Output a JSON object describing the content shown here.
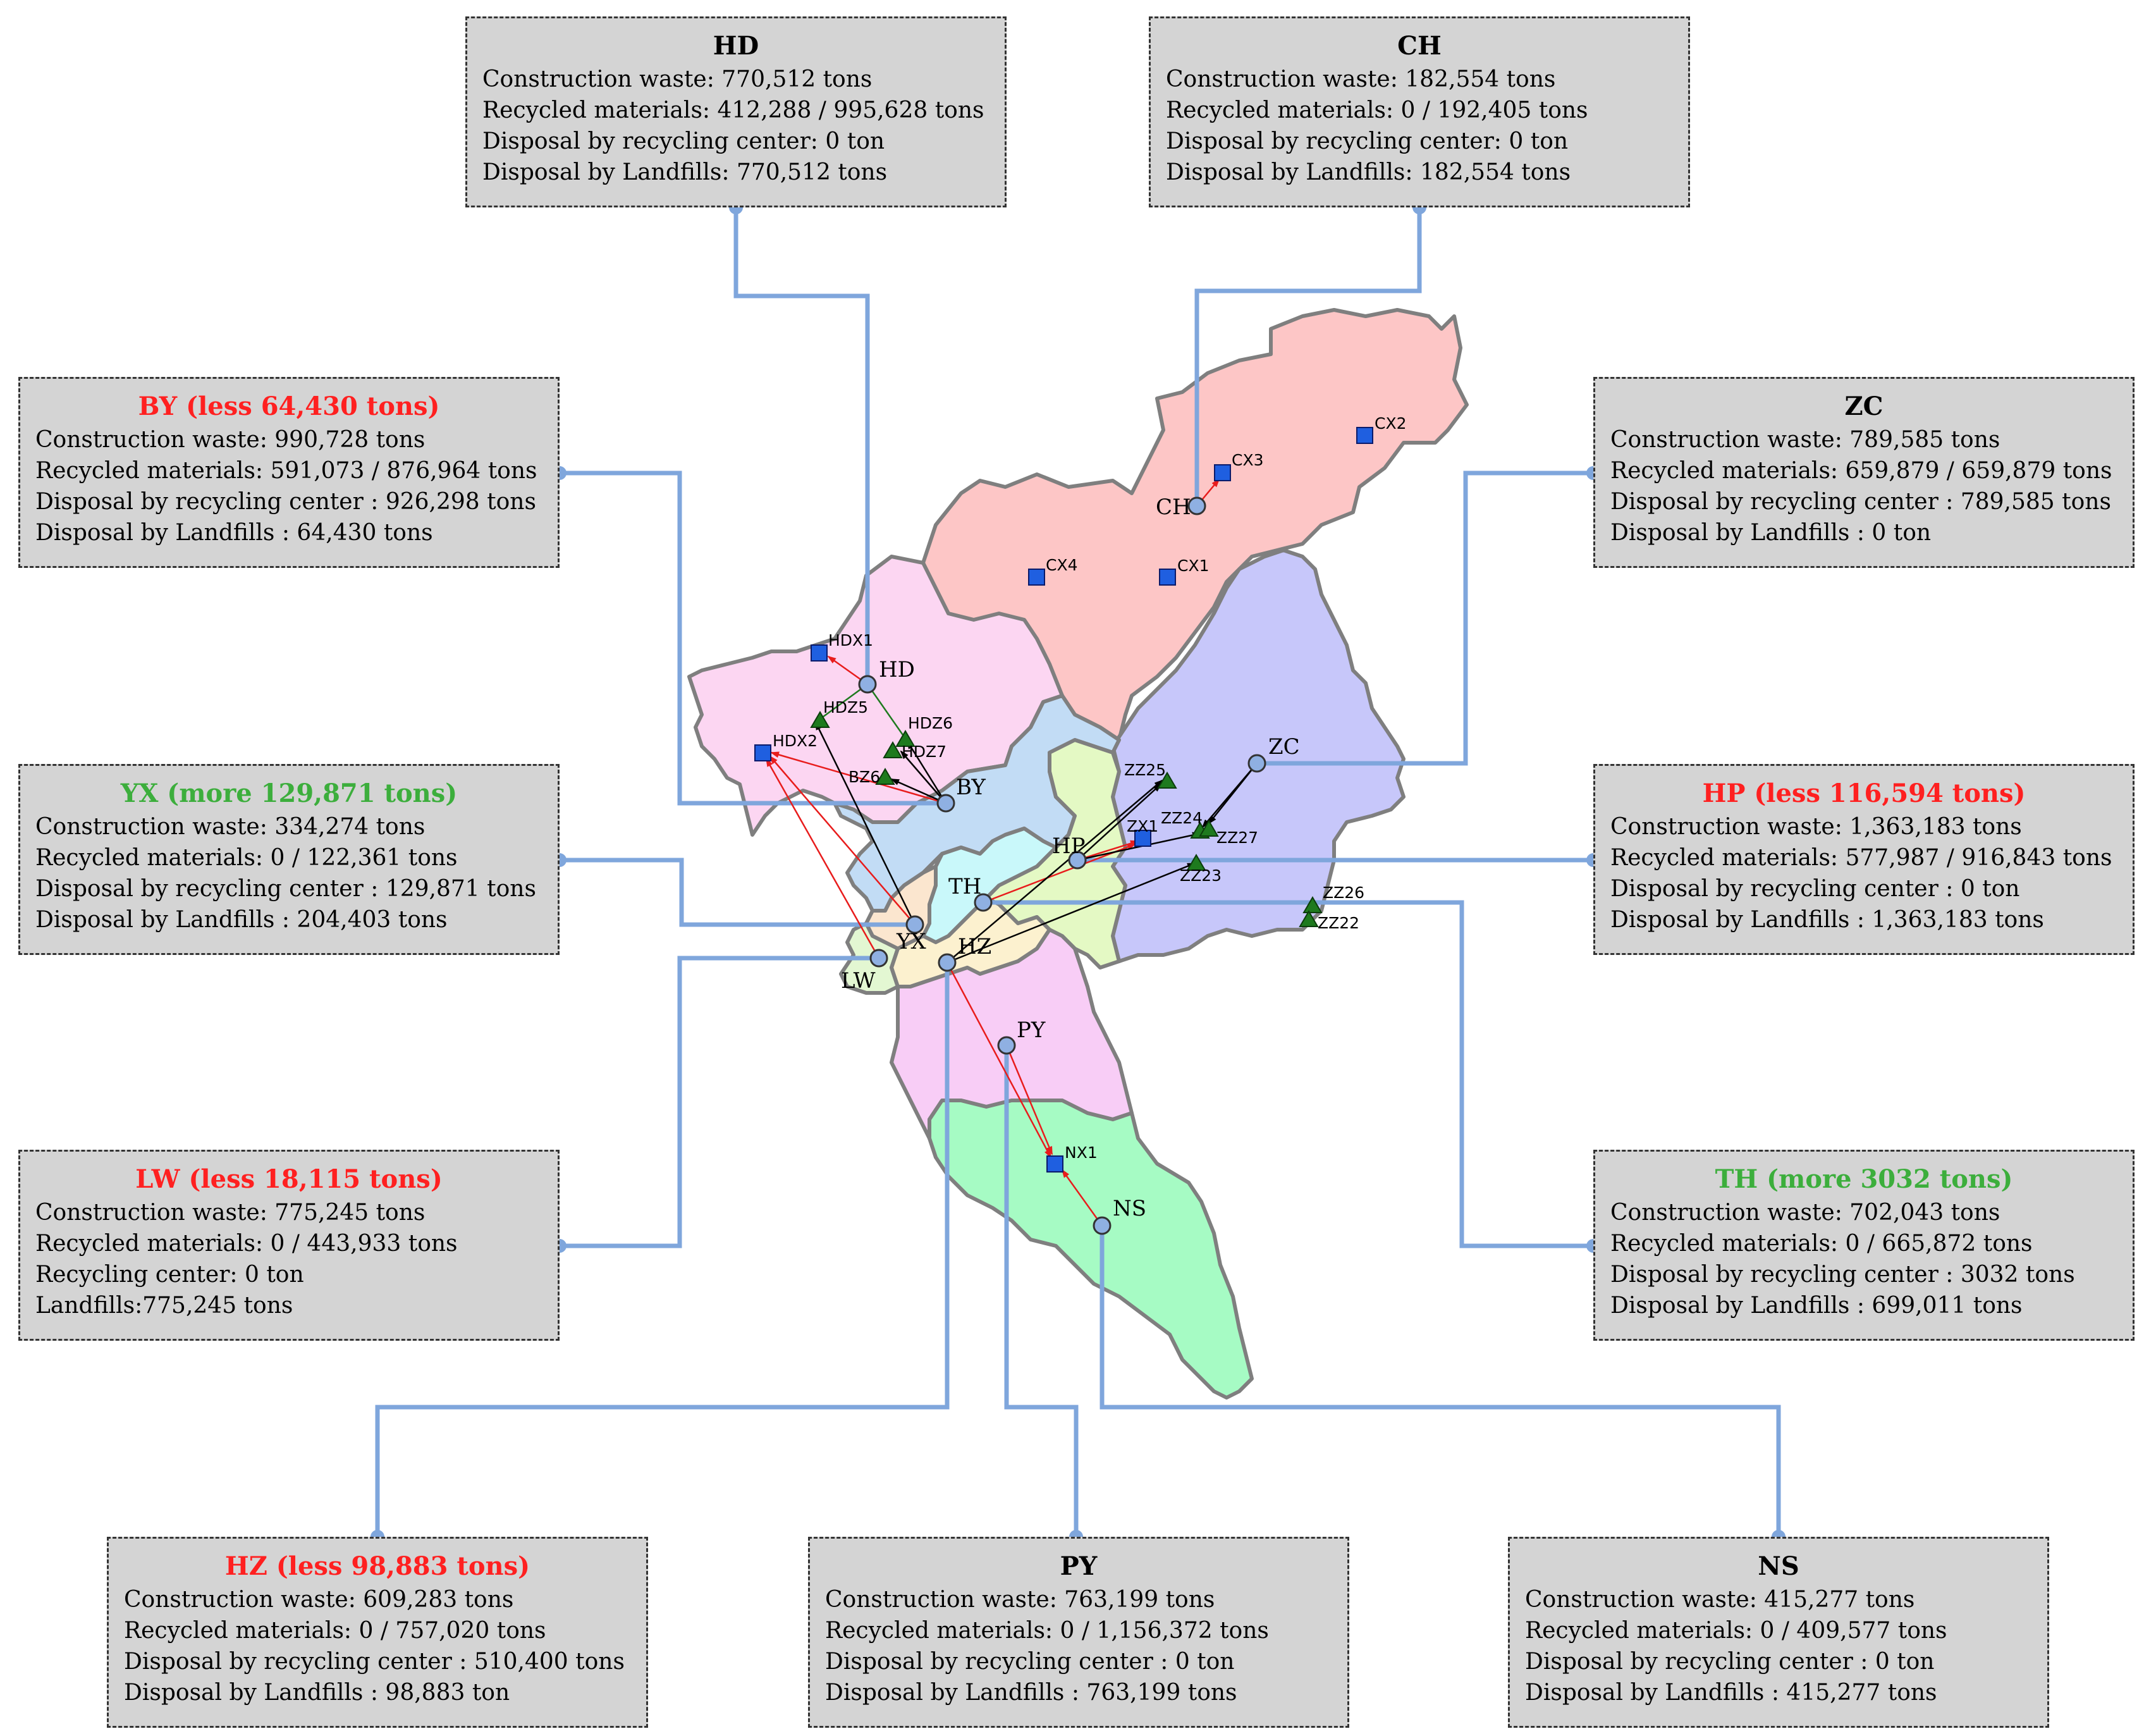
{
  "colors": {
    "box_bg": "#d4d4d4",
    "connector": "#7fa6dc",
    "red_title": "#ff2020",
    "green_title": "#3cae3c",
    "recycling_site": "#1f5fe0",
    "landfill_site": "#1e7a1e",
    "flow_red": "#e81c1c",
    "flow_black": "#000000"
  },
  "boxes": [
    {
      "id": "HD",
      "title": "HD",
      "title_color": "black",
      "lines": [
        "Construction waste: 770,512 tons",
        "Recycled materials: 412,288 / 995,628 tons",
        "Disposal by recycling center: 0 ton",
        "Disposal by Landfills: 770,512 tons"
      ]
    },
    {
      "id": "CH",
      "title": "CH",
      "title_color": "black",
      "lines": [
        "Construction waste: 182,554 tons",
        "Recycled materials: 0 / 192,405 tons",
        "Disposal by recycling center: 0 ton",
        "Disposal by Landfills: 182,554 tons"
      ]
    },
    {
      "id": "BY",
      "title": "BY (less 64,430 tons)",
      "title_color": "red",
      "lines": [
        "Construction waste: 990,728 tons",
        "Recycled materials: 591,073 / 876,964 tons",
        "Disposal by recycling center : 926,298 tons",
        "Disposal by Landfills : 64,430 tons"
      ]
    },
    {
      "id": "ZC",
      "title": "ZC",
      "title_color": "black",
      "lines": [
        "Construction waste: 789,585 tons",
        "Recycled materials: 659,879 / 659,879 tons",
        "Disposal by recycling center : 789,585 tons",
        "Disposal by Landfills : 0 ton"
      ]
    },
    {
      "id": "YX",
      "title": "YX (more 129,871 tons)",
      "title_color": "green",
      "lines": [
        "Construction waste: 334,274 tons",
        "Recycled materials: 0 / 122,361 tons",
        "Disposal by recycling center : 129,871 tons",
        "Disposal by Landfills : 204,403 tons"
      ]
    },
    {
      "id": "HP",
      "title": "HP (less 116,594 tons)",
      "title_color": "red",
      "lines": [
        "Construction waste: 1,363,183 tons",
        "Recycled materials: 577,987 / 916,843 tons",
        "Disposal by recycling center : 0 ton",
        "Disposal by Landfills : 1,363,183 tons"
      ]
    },
    {
      "id": "LW",
      "title": "LW (less 18,115 tons)",
      "title_color": "red",
      "lines": [
        "Construction waste: 775,245 tons",
        "Recycled materials: 0 / 443,933 tons",
        "Recycling center: 0 ton",
        "Landfills:775,245 tons"
      ]
    },
    {
      "id": "TH",
      "title": "TH (more 3032 tons)",
      "title_color": "green",
      "lines": [
        "Construction waste: 702,043 tons",
        "Recycled materials: 0 / 665,872 tons",
        "Disposal by recycling center : 3032 tons",
        "Disposal by Landfills : 699,011 tons"
      ]
    },
    {
      "id": "HZ",
      "title": "HZ (less 98,883 tons)",
      "title_color": "red",
      "lines": [
        "Construction waste: 609,283 tons",
        "Recycled materials: 0 / 757,020 tons",
        "Disposal by recycling center : 510,400 tons",
        "Disposal by Landfills : 98,883 ton"
      ]
    },
    {
      "id": "PY",
      "title": "PY",
      "title_color": "black",
      "lines": [
        "Construction waste: 763,199 tons",
        "Recycled materials: 0 / 1,156,372 tons",
        "Disposal by recycling center : 0 ton",
        "Disposal by Landfills : 763,199 tons"
      ]
    },
    {
      "id": "NS",
      "title": "NS",
      "title_color": "black",
      "lines": [
        "Construction waste: 415,277 tons",
        "Recycled materials: 0 / 409,577 tons",
        "Disposal by recycling center : 0 ton",
        "Disposal by Landfills : 415,277 tons"
      ]
    }
  ],
  "district_labels": [
    "HD",
    "CH",
    "ZC",
    "BY",
    "HP",
    "TH",
    "YX",
    "HZ",
    "LW",
    "PY",
    "NS"
  ],
  "recycling_sites": [
    "CX1",
    "CX2",
    "CX3",
    "CX4",
    "HDX1",
    "HDX2",
    "ZX1",
    "NX1"
  ],
  "landfill_sites": [
    "HDZ5",
    "HDZ6",
    "HDZ7",
    "BZ6",
    "ZZ25",
    "ZZ24",
    "ZZ27",
    "ZZ23",
    "ZZ26",
    "ZZ22"
  ]
}
